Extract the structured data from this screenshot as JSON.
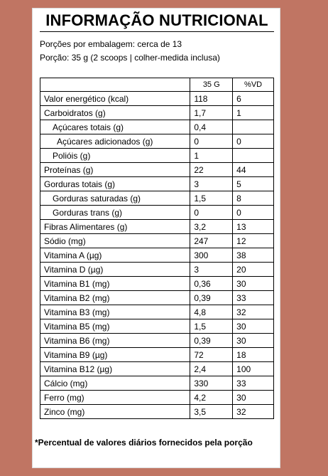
{
  "title": "INFORMAÇÃO NUTRICIONAL",
  "serving": {
    "portions": "Porções por embalagem: cerca de 13",
    "portion_size": "Porção: 35 g (2 scoops | colher-medida inclusa)"
  },
  "table": {
    "headers": [
      "",
      "35 G",
      "%VD"
    ],
    "rows": [
      {
        "name": "Valor energético (kcal)",
        "amount": "118",
        "dv": "6",
        "indent": 0
      },
      {
        "name": "Carboidratos (g)",
        "amount": "1,7",
        "dv": "1",
        "indent": 0
      },
      {
        "name": "Açúcares totais (g)",
        "amount": "0,4",
        "dv": "",
        "indent": 1
      },
      {
        "name": "Açúcares adicionados (g)",
        "amount": "0",
        "dv": "0",
        "indent": 2
      },
      {
        "name": "Polióis (g)",
        "amount": "1",
        "dv": "",
        "indent": 1
      },
      {
        "name": "Proteínas (g)",
        "amount": "22",
        "dv": "44",
        "indent": 0
      },
      {
        "name": "Gorduras totais (g)",
        "amount": "3",
        "dv": "5",
        "indent": 0
      },
      {
        "name": "Gorduras saturadas (g)",
        "amount": "1,5",
        "dv": "8",
        "indent": 1
      },
      {
        "name": "Gorduras trans (g)",
        "amount": "0",
        "dv": "0",
        "indent": 1
      },
      {
        "name": "Fibras Alimentares (g)",
        "amount": "3,2",
        "dv": "13",
        "indent": 0
      },
      {
        "name": "Sódio (mg)",
        "amount": "247",
        "dv": "12",
        "indent": 0
      },
      {
        "name": "Vitamina A (µg)",
        "amount": "300",
        "dv": "38",
        "indent": 0
      },
      {
        "name": "Vitamina D (µg)",
        "amount": "3",
        "dv": "20",
        "indent": 0
      },
      {
        "name": "Vitamina B1 (mg)",
        "amount": "0,36",
        "dv": "30",
        "indent": 0
      },
      {
        "name": "Vitamina B2 (mg)",
        "amount": "0,39",
        "dv": "33",
        "indent": 0
      },
      {
        "name": "Vitamina B3 (mg)",
        "amount": "4,8",
        "dv": "32",
        "indent": 0
      },
      {
        "name": "Vitamina B5 (mg)",
        "amount": "1,5",
        "dv": "30",
        "indent": 0
      },
      {
        "name": "Vitamina B6 (mg)",
        "amount": "0,39",
        "dv": "30",
        "indent": 0
      },
      {
        "name": "Vitamina B9 (µg)",
        "amount": "72",
        "dv": "18",
        "indent": 0
      },
      {
        "name": "Vitamina B12 (µg)",
        "amount": "2,4",
        "dv": "100",
        "indent": 0
      },
      {
        "name": "Cálcio (mg)",
        "amount": "330",
        "dv": "33",
        "indent": 0
      },
      {
        "name": "Ferro (mg)",
        "amount": "4,2",
        "dv": "30",
        "indent": 0
      },
      {
        "name": "Zinco (mg)",
        "amount": "3,5",
        "dv": "32",
        "indent": 0
      }
    ]
  },
  "footnote": "*Percentual de valores diários fornecidos pela porção",
  "colors": {
    "background": "#c07563",
    "panel": "#ffffff",
    "text": "#000000"
  }
}
